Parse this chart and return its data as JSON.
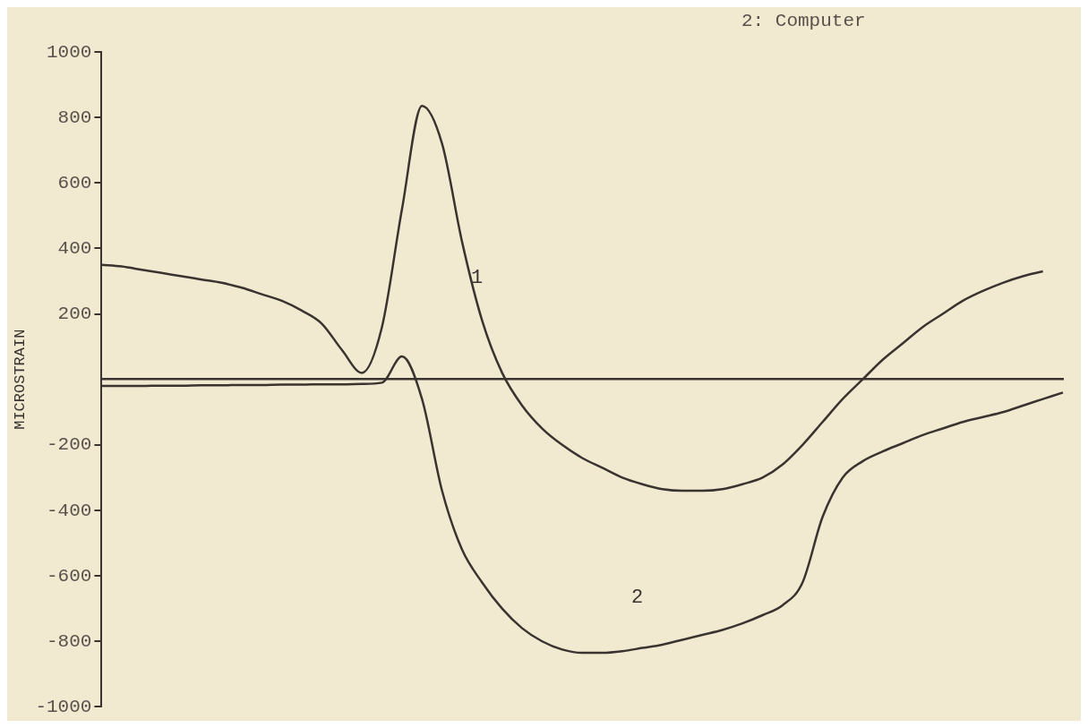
{
  "chart_data": {
    "type": "line",
    "annotations": [
      "2: Computer"
    ],
    "ylabel": "MICROSTRAIN",
    "categories": [
      null,
      null,
      null,
      null,
      null,
      null,
      null,
      null,
      null,
      null,
      null,
      null,
      null,
      null,
      null,
      null,
      null,
      null,
      null,
      null,
      null,
      null,
      null,
      null,
      null,
      null,
      null,
      null,
      null,
      null,
      null,
      null,
      null,
      null,
      null,
      null,
      null,
      null,
      null,
      null,
      null,
      null,
      null,
      null,
      null,
      null,
      null,
      null,
      null
    ],
    "series": [
      {
        "name": "1",
        "color": "#3a3330",
        "values": [
          350,
          345,
          335,
          325,
          315,
          305,
          295,
          280,
          260,
          240,
          210,
          170,
          90,
          20,
          160,
          520,
          835,
          720,
          420,
          180,
          20,
          -80,
          -150,
          -200,
          -240,
          -270,
          -300,
          -320,
          -335,
          -340,
          -340,
          -335,
          -320,
          -300,
          -260,
          -200,
          -130,
          -60,
          0,
          60,
          110,
          160,
          200,
          240,
          270,
          295,
          315,
          330,
          null
        ]
      },
      {
        "name": "2",
        "color": "#3a3330",
        "values": [
          -20,
          -20,
          -20,
          -19,
          -19,
          -18,
          -18,
          -17,
          -17,
          -16,
          -16,
          -15,
          -15,
          -14,
          -10,
          70,
          -60,
          -340,
          -520,
          -620,
          -700,
          -760,
          -800,
          -825,
          -835,
          -835,
          -830,
          -820,
          -810,
          -795,
          -780,
          -765,
          -745,
          -720,
          -690,
          -620,
          -420,
          -300,
          -250,
          -220,
          -195,
          -170,
          -150,
          -130,
          -115,
          -100,
          -80,
          -60,
          -40
        ]
      }
    ],
    "ylim": [
      -1000,
      1000
    ],
    "yticks": [
      -1000,
      -800,
      -600,
      -400,
      -200,
      200,
      400,
      600,
      800,
      1000
    ],
    "grid": false,
    "legend": false,
    "marker": "none",
    "line_style": "solid"
  }
}
